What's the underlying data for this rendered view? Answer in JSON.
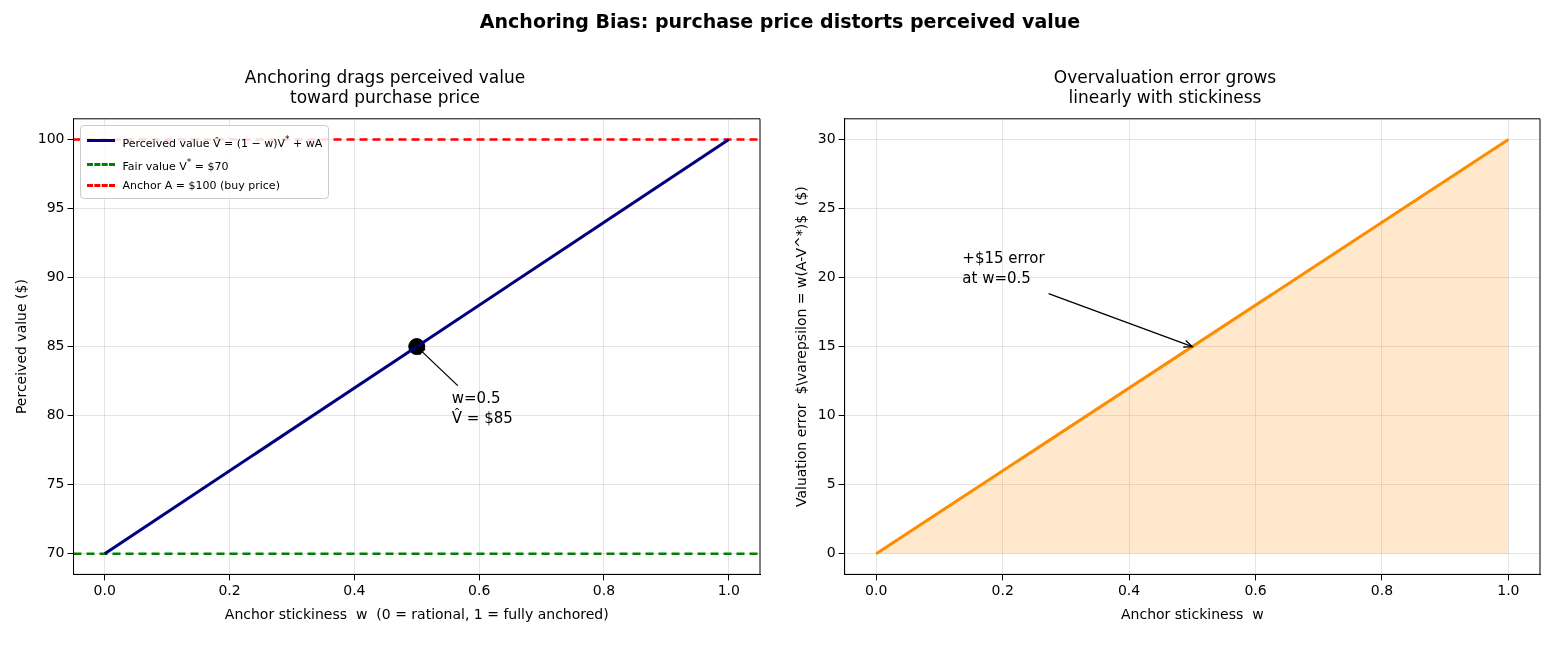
{
  "chart_data": [
    {
      "type": "line",
      "title": "Anchoring drags perceived value\ntoward purchase price",
      "xlabel": "Anchor stickiness  w  (0 = rational, 1 = fully anchored)",
      "ylabel": "Perceived value ($)",
      "xlim": [
        -0.05,
        1.05
      ],
      "xticks": [
        {
          "value": 0,
          "label": "0.0"
        },
        {
          "value": 0.2,
          "label": "0.2"
        },
        {
          "value": 0.4,
          "label": "0.4"
        },
        {
          "value": 0.6,
          "label": "0.6"
        },
        {
          "value": 0.8,
          "label": "0.8"
        },
        {
          "value": 1,
          "label": "1.0"
        }
      ],
      "ylim": [
        68.5,
        101.5
      ],
      "yticks": [
        70,
        75,
        80,
        85,
        90,
        95,
        100
      ],
      "grid": true,
      "legend": "top left",
      "line_style": "solid",
      "series": [
        {
          "name": "Perceived value V̂ = (1 − w)V$^{*}$ + wA",
          "color": "#000080",
          "x": [
            0,
            1
          ],
          "values": [
            70,
            100
          ]
        },
        {
          "type": "scatter",
          "marker": "circle",
          "color": "#000000",
          "x": [
            0.5
          ],
          "values": [
            85
          ]
        }
      ],
      "ref_lines": [
        {
          "axis": "y",
          "value": 70,
          "label": "Fair value V$^{*}$ = $70",
          "color": "#008000",
          "line_style": "dashed"
        },
        {
          "axis": "y",
          "value": 100,
          "label": "Anchor A = $100 (buy price)",
          "color": "#ff0000",
          "line_style": "dashed"
        }
      ],
      "annotations": [
        "Anchoring Bias: purchase price distorts perceived value",
        {
          "text": "w=0.5\nV̂ = $85",
          "x": 0.5,
          "y": 85
        }
      ]
    },
    {
      "type": "area",
      "title": "Overvaluation error grows\nlinearly with stickiness",
      "xlabel": "Anchor stickiness  w",
      "ylabel": "Valuation error  $\\varepsilon = w(A-V^*)$  ($)",
      "xlim": [
        -0.05,
        1.05
      ],
      "xticks": [
        {
          "value": 0,
          "label": "0.0"
        },
        {
          "value": 0.2,
          "label": "0.2"
        },
        {
          "value": 0.4,
          "label": "0.4"
        },
        {
          "value": 0.6,
          "label": "0.6"
        },
        {
          "value": 0.8,
          "label": "0.8"
        },
        {
          "value": 1,
          "label": "1.0"
        }
      ],
      "ylim": [
        -1.5,
        31.5
      ],
      "yticks": [
        0,
        5,
        10,
        15,
        20,
        25,
        30
      ],
      "grid": true,
      "legend": false,
      "series": [
        {
          "color": "#ff8c00",
          "x": [
            0,
            1
          ],
          "values": [
            0,
            30
          ]
        }
      ],
      "annotations": [
        {
          "text": "+$15 error\nat w=0.5",
          "x": 0.5,
          "y": 15
        }
      ]
    }
  ]
}
